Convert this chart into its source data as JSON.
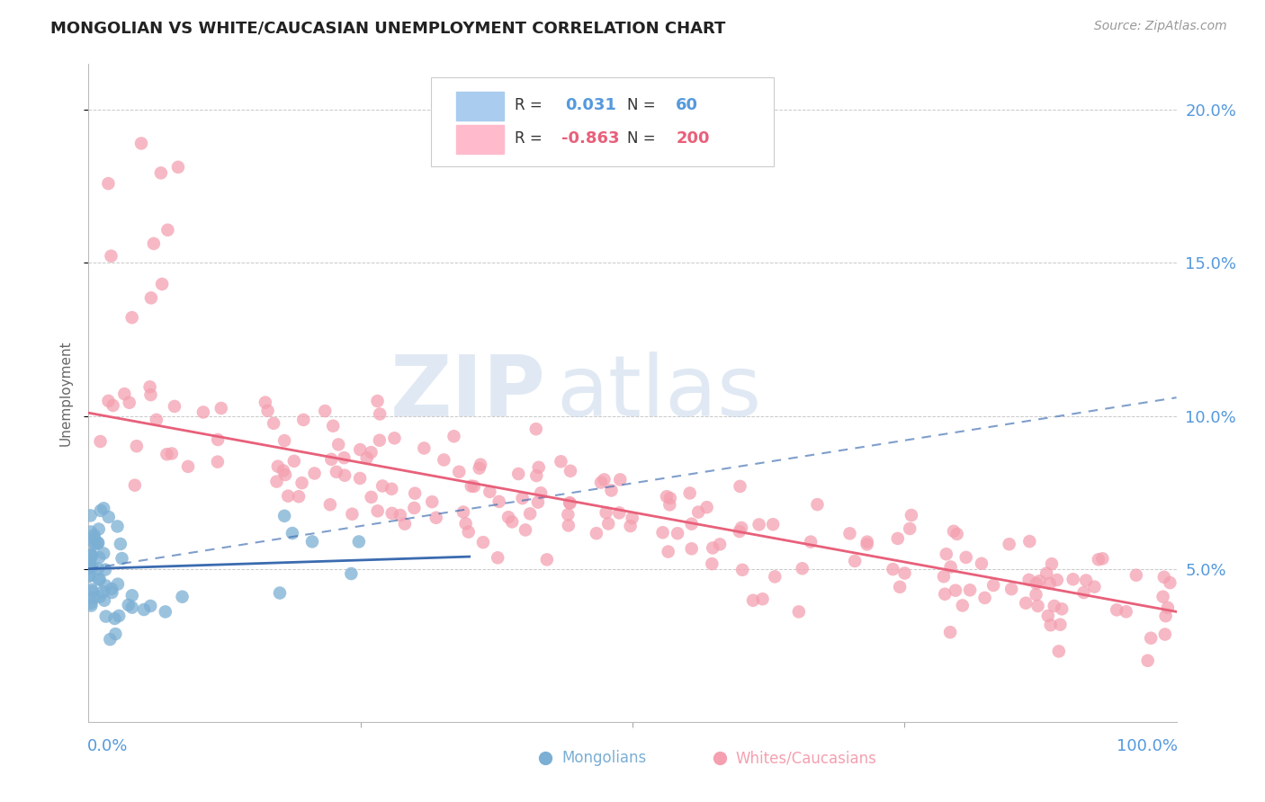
{
  "title": "MONGOLIAN VS WHITE/CAUCASIAN UNEMPLOYMENT CORRELATION CHART",
  "source": "Source: ZipAtlas.com",
  "ylabel": "Unemployment",
  "y_ticks": [
    0.05,
    0.1,
    0.15,
    0.2
  ],
  "y_tick_labels": [
    "5.0%",
    "10.0%",
    "15.0%",
    "20.0%"
  ],
  "xlim": [
    0.0,
    1.0
  ],
  "ylim": [
    0.0,
    0.215
  ],
  "mongolian_R": 0.031,
  "mongolian_N": 60,
  "caucasian_R": -0.863,
  "caucasian_N": 200,
  "mongolian_color": "#7BAFD4",
  "caucasian_color": "#F4A0B0",
  "mongolian_line_color": "#3B6BB0",
  "caucasian_line_color": "#E8607A",
  "legend_label_mongolian": "Mongolians",
  "legend_label_caucasian": "Whites/Caucasians",
  "background_color": "#FFFFFF",
  "grid_color": "#BBBBBB",
  "title_color": "#222222",
  "axis_label_color": "#5599DD",
  "legend_text_color": "#333333",
  "source_color": "#999999",
  "watermark_color": "#C8D8EA",
  "mongolian_seed": 101,
  "caucasian_seed": 202
}
